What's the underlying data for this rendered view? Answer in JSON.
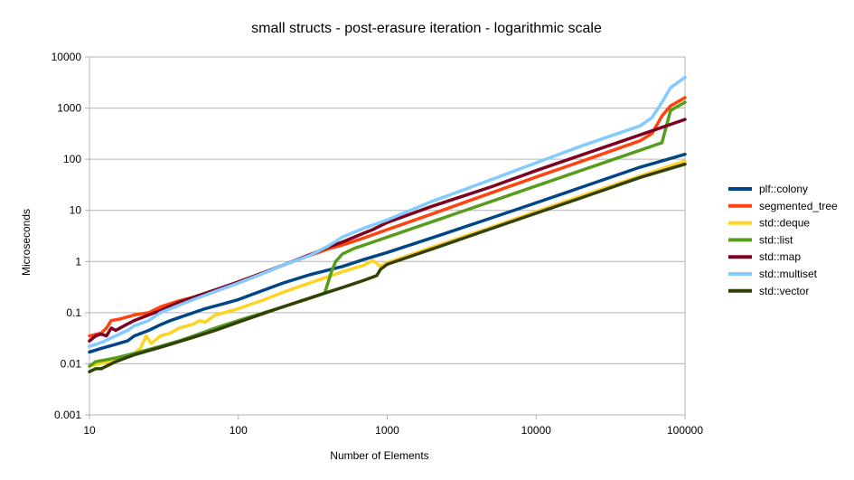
{
  "chart_data": {
    "type": "line",
    "title": "small structs - post-erasure iteration - logarithmic scale",
    "xlabel": "Number of Elements",
    "ylabel": "Microseconds",
    "x_scale": "log",
    "y_scale": "log",
    "xlim": [
      10,
      100000
    ],
    "ylim": [
      0.001,
      10000
    ],
    "x_ticks": [
      "10",
      "100",
      "1000",
      "10000",
      "100000"
    ],
    "y_ticks": [
      "0.001",
      "0.01",
      "0.1",
      "1",
      "10",
      "100",
      "1000",
      "10000"
    ],
    "grid": "horizontal",
    "legend_position": "right",
    "series": [
      {
        "name": "plf::colony",
        "color": "#004586",
        "points": [
          [
            10,
            0.017
          ],
          [
            12,
            0.02
          ],
          [
            15,
            0.024
          ],
          [
            18,
            0.028
          ],
          [
            20,
            0.035
          ],
          [
            25,
            0.045
          ],
          [
            30,
            0.058
          ],
          [
            35,
            0.07
          ],
          [
            40,
            0.08
          ],
          [
            50,
            0.1
          ],
          [
            60,
            0.12
          ],
          [
            80,
            0.15
          ],
          [
            100,
            0.18
          ],
          [
            150,
            0.28
          ],
          [
            200,
            0.38
          ],
          [
            300,
            0.55
          ],
          [
            400,
            0.68
          ],
          [
            500,
            0.8
          ],
          [
            700,
            1.1
          ],
          [
            1000,
            1.5
          ],
          [
            2000,
            2.9
          ],
          [
            5000,
            7.1
          ],
          [
            10000,
            14
          ],
          [
            20000,
            28
          ],
          [
            50000,
            70
          ],
          [
            100000,
            125
          ]
        ]
      },
      {
        "name": "segmented_tree",
        "color": "#ff420e",
        "points": [
          [
            10,
            0.035
          ],
          [
            12,
            0.04
          ],
          [
            13,
            0.05
          ],
          [
            14,
            0.07
          ],
          [
            16,
            0.075
          ],
          [
            20,
            0.09
          ],
          [
            25,
            0.1
          ],
          [
            30,
            0.13
          ],
          [
            40,
            0.17
          ],
          [
            50,
            0.2
          ],
          [
            60,
            0.22
          ],
          [
            80,
            0.3
          ],
          [
            100,
            0.38
          ],
          [
            150,
            0.6
          ],
          [
            200,
            0.85
          ],
          [
            300,
            1.3
          ],
          [
            400,
            1.75
          ],
          [
            500,
            2.1
          ],
          [
            700,
            2.9
          ],
          [
            1000,
            4.2
          ],
          [
            2000,
            8.5
          ],
          [
            5000,
            22
          ],
          [
            10000,
            45
          ],
          [
            20000,
            90
          ],
          [
            50000,
            230
          ],
          [
            60000,
            320
          ],
          [
            70000,
            700
          ],
          [
            80000,
            1100
          ],
          [
            100000,
            1600
          ]
        ]
      },
      {
        "name": "std::deque",
        "color": "#ffd320",
        "points": [
          [
            10,
            0.009
          ],
          [
            15,
            0.012
          ],
          [
            20,
            0.016
          ],
          [
            22,
            0.02
          ],
          [
            24,
            0.035
          ],
          [
            26,
            0.025
          ],
          [
            30,
            0.035
          ],
          [
            35,
            0.04
          ],
          [
            40,
            0.05
          ],
          [
            50,
            0.06
          ],
          [
            55,
            0.07
          ],
          [
            60,
            0.065
          ],
          [
            70,
            0.09
          ],
          [
            80,
            0.1
          ],
          [
            100,
            0.12
          ],
          [
            150,
            0.18
          ],
          [
            200,
            0.25
          ],
          [
            300,
            0.38
          ],
          [
            400,
            0.5
          ],
          [
            500,
            0.63
          ],
          [
            700,
            0.85
          ],
          [
            800,
            1.05
          ],
          [
            900,
            0.8
          ],
          [
            1000,
            0.95
          ],
          [
            2000,
            1.9
          ],
          [
            5000,
            4.7
          ],
          [
            10000,
            9.5
          ],
          [
            20000,
            19
          ],
          [
            50000,
            47
          ],
          [
            100000,
            92
          ]
        ]
      },
      {
        "name": "std::list",
        "color": "#579d1c",
        "points": [
          [
            10,
            0.009
          ],
          [
            11,
            0.011
          ],
          [
            15,
            0.013
          ],
          [
            20,
            0.016
          ],
          [
            30,
            0.022
          ],
          [
            40,
            0.028
          ],
          [
            50,
            0.035
          ],
          [
            70,
            0.05
          ],
          [
            100,
            0.07
          ],
          [
            200,
            0.13
          ],
          [
            300,
            0.19
          ],
          [
            380,
            0.24
          ],
          [
            420,
            0.6
          ],
          [
            450,
            1.0
          ],
          [
            500,
            1.4
          ],
          [
            600,
            1.8
          ],
          [
            700,
            2.1
          ],
          [
            1000,
            3.0
          ],
          [
            2000,
            6.0
          ],
          [
            5000,
            15
          ],
          [
            10000,
            30
          ],
          [
            20000,
            60
          ],
          [
            50000,
            150
          ],
          [
            70000,
            210
          ],
          [
            80000,
            900
          ],
          [
            100000,
            1300
          ]
        ]
      },
      {
        "name": "std::map",
        "color": "#7e0021",
        "points": [
          [
            10,
            0.028
          ],
          [
            11,
            0.035
          ],
          [
            12,
            0.038
          ],
          [
            13,
            0.035
          ],
          [
            14,
            0.05
          ],
          [
            15,
            0.045
          ],
          [
            18,
            0.06
          ],
          [
            20,
            0.07
          ],
          [
            25,
            0.09
          ],
          [
            30,
            0.11
          ],
          [
            40,
            0.16
          ],
          [
            50,
            0.2
          ],
          [
            70,
            0.28
          ],
          [
            100,
            0.4
          ],
          [
            150,
            0.62
          ],
          [
            200,
            0.85
          ],
          [
            300,
            1.35
          ],
          [
            400,
            1.9
          ],
          [
            500,
            2.4
          ],
          [
            700,
            3.6
          ],
          [
            800,
            4.2
          ],
          [
            1000,
            5.8
          ],
          [
            2000,
            12
          ],
          [
            5000,
            29
          ],
          [
            10000,
            60
          ],
          [
            20000,
            120
          ],
          [
            50000,
            300
          ],
          [
            100000,
            600
          ]
        ]
      },
      {
        "name": "std::multiset",
        "color": "#83caff",
        "points": [
          [
            10,
            0.022
          ],
          [
            12,
            0.026
          ],
          [
            15,
            0.035
          ],
          [
            18,
            0.045
          ],
          [
            20,
            0.055
          ],
          [
            25,
            0.07
          ],
          [
            30,
            0.1
          ],
          [
            40,
            0.14
          ],
          [
            50,
            0.18
          ],
          [
            70,
            0.26
          ],
          [
            100,
            0.38
          ],
          [
            150,
            0.6
          ],
          [
            200,
            0.85
          ],
          [
            300,
            1.3
          ],
          [
            400,
            2.0
          ],
          [
            500,
            3.0
          ],
          [
            700,
            4.5
          ],
          [
            1000,
            6.5
          ],
          [
            2000,
            15
          ],
          [
            5000,
            40
          ],
          [
            10000,
            85
          ],
          [
            20000,
            180
          ],
          [
            50000,
            450
          ],
          [
            60000,
            650
          ],
          [
            70000,
            1300
          ],
          [
            80000,
            2500
          ],
          [
            100000,
            4000
          ]
        ]
      },
      {
        "name": "std::vector",
        "color": "#314004",
        "points": [
          [
            10,
            0.007
          ],
          [
            11,
            0.008
          ],
          [
            12,
            0.008
          ],
          [
            15,
            0.011
          ],
          [
            20,
            0.015
          ],
          [
            30,
            0.021
          ],
          [
            40,
            0.027
          ],
          [
            50,
            0.033
          ],
          [
            70,
            0.045
          ],
          [
            100,
            0.065
          ],
          [
            200,
            0.13
          ],
          [
            380,
            0.24
          ],
          [
            500,
            0.31
          ],
          [
            700,
            0.43
          ],
          [
            850,
            0.53
          ],
          [
            900,
            0.7
          ],
          [
            1000,
            0.88
          ],
          [
            2000,
            1.75
          ],
          [
            5000,
            4.4
          ],
          [
            10000,
            8.8
          ],
          [
            20000,
            17.5
          ],
          [
            50000,
            44
          ],
          [
            100000,
            80
          ]
        ]
      }
    ]
  }
}
